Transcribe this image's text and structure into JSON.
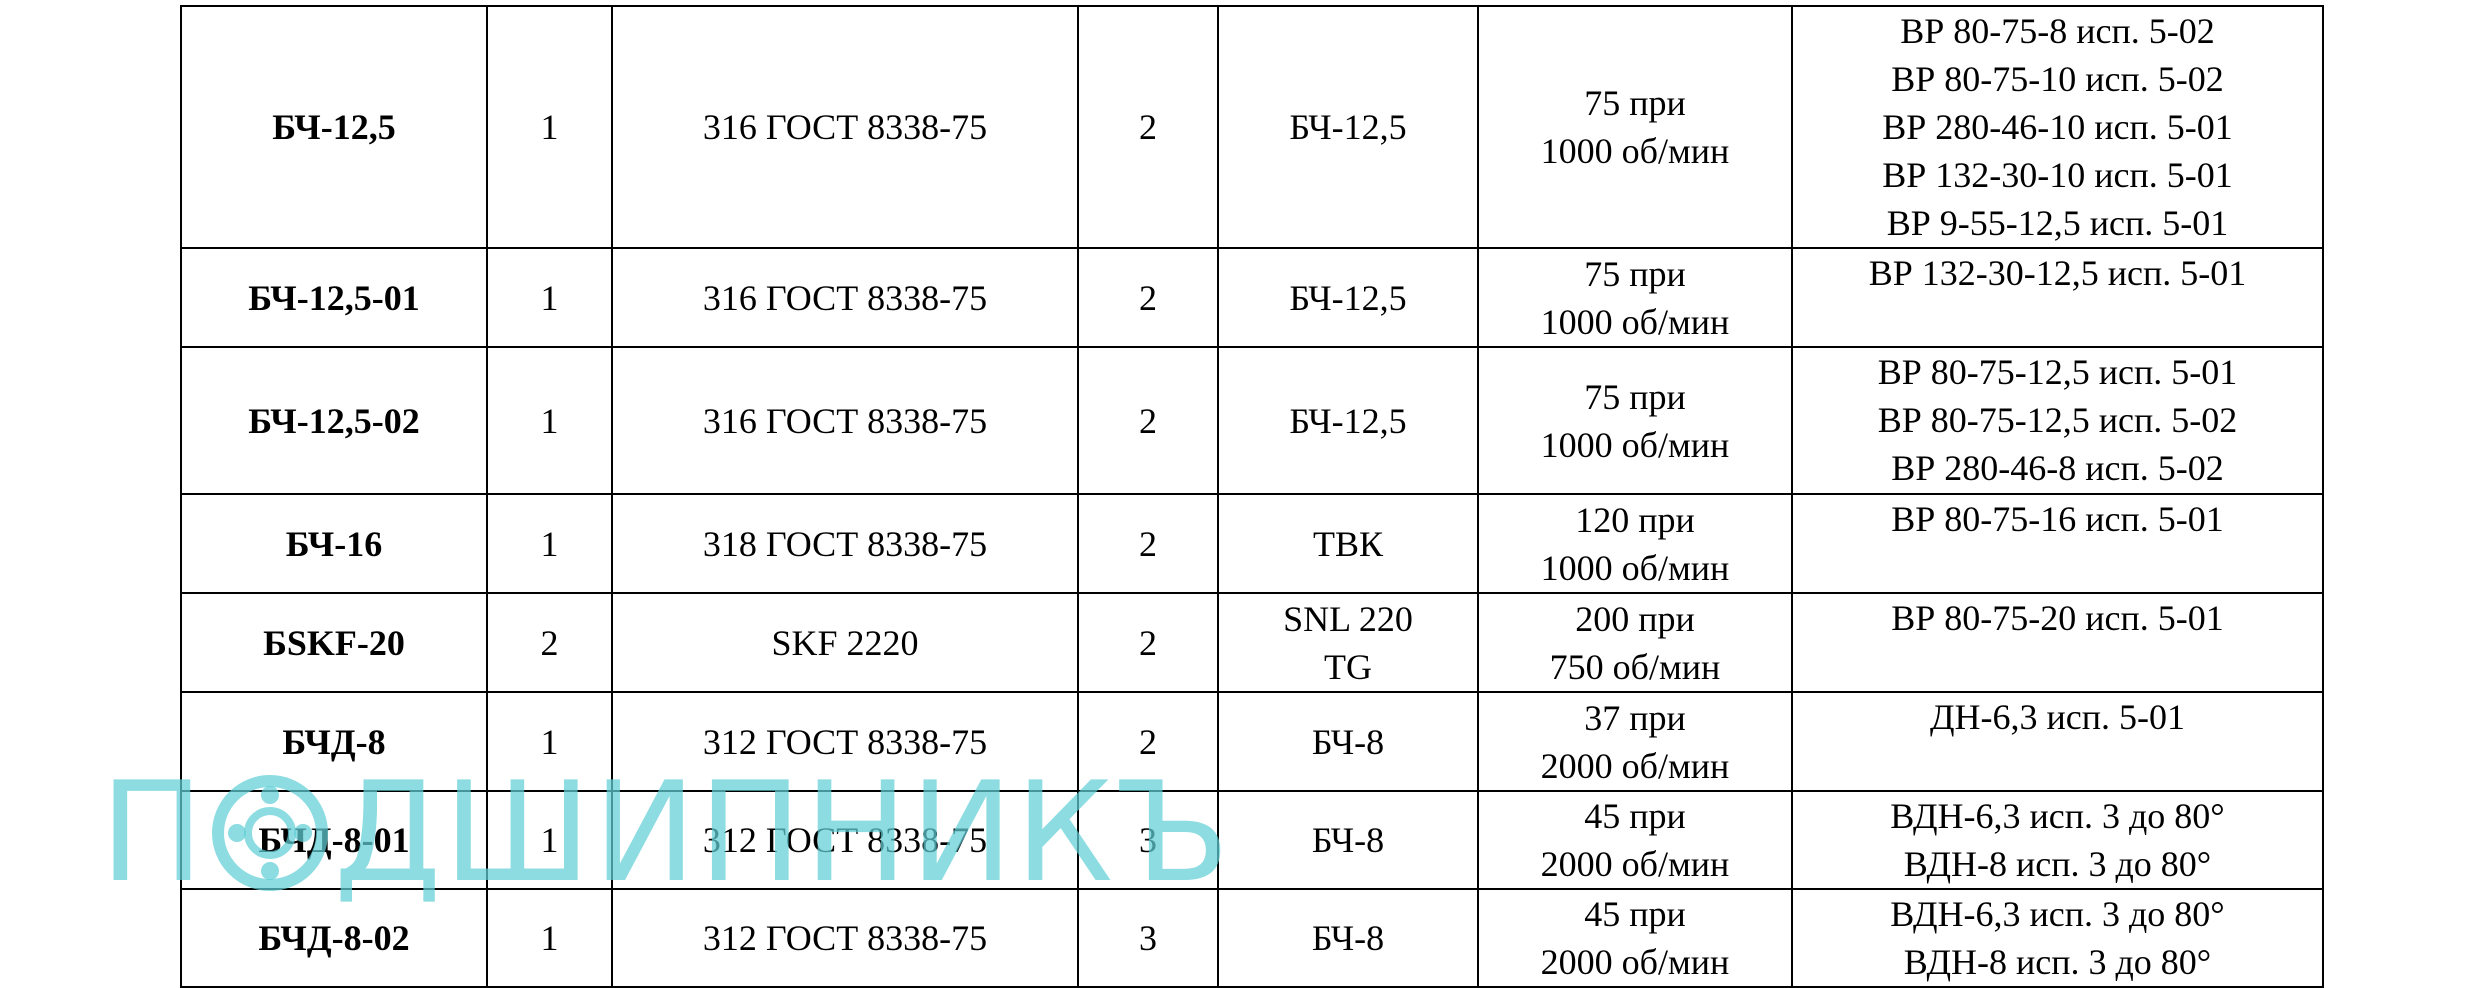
{
  "table": {
    "rows": [
      [
        [
          "БЧ-12,5"
        ],
        [
          "1"
        ],
        [
          "316 ГОСТ 8338-75"
        ],
        [
          "2"
        ],
        [
          "БЧ-12,5"
        ],
        [
          "75 при",
          "1000 об/мин"
        ],
        [
          "ВР 80-75-8 исп. 5-02",
          "ВР 80-75-10 исп. 5-02",
          "ВР 280-46-10 исп. 5-01",
          "ВР 132-30-10 исп. 5-01",
          "ВР 9-55-12,5 исп. 5-01"
        ]
      ],
      [
        [
          "БЧ-12,5-01"
        ],
        [
          "1"
        ],
        [
          "316 ГОСТ 8338-75"
        ],
        [
          "2"
        ],
        [
          "БЧ-12,5"
        ],
        [
          "75 при",
          "1000 об/мин"
        ],
        [
          "ВР 132-30-12,5 исп. 5-01"
        ]
      ],
      [
        [
          "БЧ-12,5-02"
        ],
        [
          "1"
        ],
        [
          "316 ГОСТ 8338-75"
        ],
        [
          "2"
        ],
        [
          "БЧ-12,5"
        ],
        [
          "75 при",
          "1000 об/мин"
        ],
        [
          "ВР 80-75-12,5 исп. 5-01",
          "ВР 80-75-12,5 исп. 5-02",
          "ВР 280-46-8 исп. 5-02"
        ]
      ],
      [
        [
          "БЧ-16"
        ],
        [
          "1"
        ],
        [
          "318 ГОСТ 8338-75"
        ],
        [
          "2"
        ],
        [
          "ТВК"
        ],
        [
          "120 при",
          "1000 об/мин"
        ],
        [
          "ВР 80-75-16 исп. 5-01"
        ]
      ],
      [
        [
          "БSKF-20"
        ],
        [
          "2"
        ],
        [
          "SKF 2220"
        ],
        [
          "2"
        ],
        [
          "SNL 220",
          "TG"
        ],
        [
          "200 при",
          "750 об/мин"
        ],
        [
          "ВР 80-75-20 исп. 5-01"
        ]
      ],
      [
        [
          "БЧД-8"
        ],
        [
          "1"
        ],
        [
          "312 ГОСТ 8338-75"
        ],
        [
          "2"
        ],
        [
          "БЧ-8"
        ],
        [
          "37 при",
          "2000 об/мин"
        ],
        [
          "ДН-6,3 исп. 5-01"
        ]
      ],
      [
        [
          "БЧД-8-01"
        ],
        [
          "1"
        ],
        [
          "312 ГОСТ 8338-75"
        ],
        [
          "3"
        ],
        [
          "БЧ-8"
        ],
        [
          "45 при",
          "2000 об/мин"
        ],
        [
          "ВДН-6,3 исп. 3 до 80°",
          "ВДН-8 исп. 3 до 80°"
        ]
      ],
      [
        [
          "БЧД-8-02"
        ],
        [
          "1"
        ],
        [
          "312 ГОСТ 8338-75"
        ],
        [
          "3"
        ],
        [
          "БЧ-8"
        ],
        [
          "45 при",
          "2000 об/мин"
        ],
        [
          "ВДН-6,3 исп. 3 до 80°",
          "ВДН-8 исп. 3 до 80°"
        ]
      ]
    ]
  },
  "watermark": {
    "start": "П",
    "end": "ДШИПНИКЪ"
  }
}
